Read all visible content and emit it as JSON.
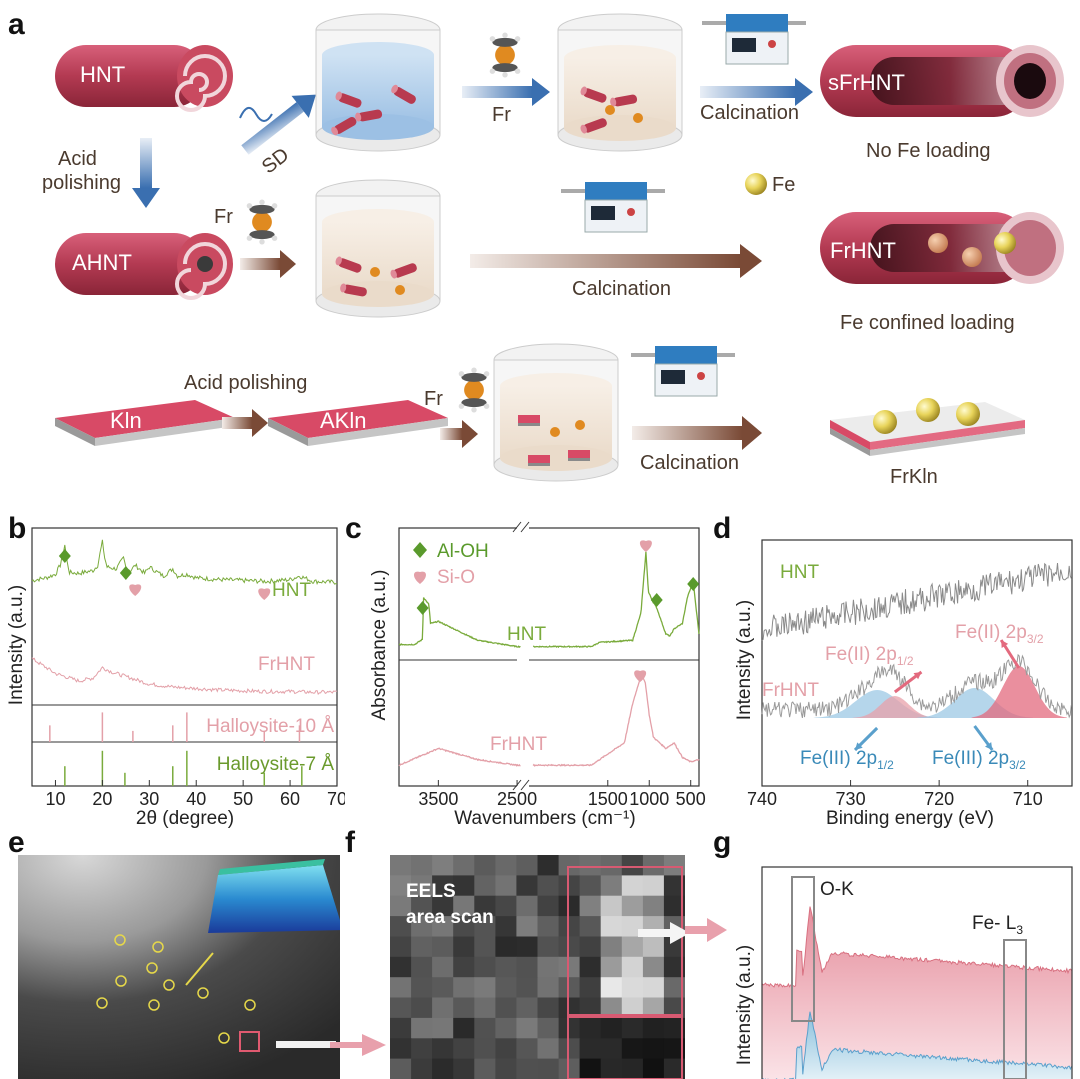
{
  "panel_labels": [
    "a",
    "b",
    "c",
    "d",
    "e",
    "f",
    "g"
  ],
  "panel_a": {
    "hnt": "HNT",
    "ahnt": "AHNT",
    "acid_polishing_1": "Acid",
    "acid_polishing_2": "polishing",
    "sd": "SD",
    "fr_top": "Fr",
    "fr_mid": "Fr",
    "fr_bottom": "Fr",
    "calcination_top": "Calcination",
    "calcination_mid": "Calcination",
    "calcination_bottom": "Calcination",
    "sfrhnt": "sFrHNT",
    "no_fe_loading": "No Fe loading",
    "fe_legend": "Fe",
    "frhnt": "FrHNT",
    "fe_confined_loading": "Fe confined loading",
    "kln": "Kln",
    "akln": "AKln",
    "acid_polishing_row3": "Acid polishing",
    "frkln": "FrKln",
    "colors": {
      "tube": "#b83a4f",
      "pink": "#e04f6c",
      "arrow_blue": "#3a6fb0",
      "arrow_brown": "#7a4a36",
      "fe": "#e8d45a"
    }
  },
  "chart_data": [
    {
      "panel": "b",
      "type": "line",
      "xlabel": "2θ (degree)",
      "ylabel": "Intensity (a.u.)",
      "xlim": [
        5,
        70
      ],
      "xticks": [
        10,
        20,
        30,
        40,
        50,
        60,
        70
      ],
      "series": [
        {
          "name": "HNT",
          "color": "#7aab3c",
          "x": [
            5,
            8,
            10,
            11,
            12,
            12.5,
            13,
            15,
            18,
            19,
            20,
            20.5,
            21,
            23,
            24.5,
            25,
            26,
            27,
            29,
            30,
            33,
            35,
            36,
            38,
            40,
            45,
            50,
            55,
            60,
            62,
            65,
            70
          ],
          "y": [
            0.55,
            0.58,
            0.62,
            0.72,
            0.95,
            0.75,
            0.64,
            0.63,
            0.66,
            0.72,
            0.98,
            0.8,
            0.7,
            0.68,
            0.8,
            0.7,
            0.66,
            0.72,
            0.63,
            0.7,
            0.6,
            0.68,
            0.6,
            0.62,
            0.58,
            0.56,
            0.55,
            0.54,
            0.56,
            0.6,
            0.54,
            0.53
          ]
        },
        {
          "name": "FrHNT",
          "color": "#e3a0a8",
          "x": [
            5,
            8,
            10,
            15,
            18,
            20,
            22,
            25,
            28,
            30,
            35,
            40,
            45,
            50,
            55,
            60,
            65,
            70
          ],
          "y": [
            0.62,
            0.5,
            0.42,
            0.32,
            0.36,
            0.5,
            0.44,
            0.38,
            0.32,
            0.28,
            0.24,
            0.22,
            0.2,
            0.19,
            0.18,
            0.18,
            0.17,
            0.17
          ]
        }
      ],
      "references": [
        {
          "name": "Halloysite-10 Å",
          "color": "#e3a0a8",
          "lines": [
            8.8,
            20,
            26.5,
            35,
            38,
            54.5,
            62
          ]
        },
        {
          "name": "Halloysite-7 Å",
          "color": "#7aab3c",
          "lines": [
            12,
            20,
            24.8,
            35,
            38,
            54.5,
            62.5
          ]
        }
      ],
      "markers": [
        {
          "symbol": "diamond",
          "color": "#5a9a2c",
          "x": 12
        },
        {
          "symbol": "diamond",
          "color": "#5a9a2c",
          "x": 25
        },
        {
          "symbol": "heart",
          "color": "#e3a0a8",
          "x": 27
        },
        {
          "symbol": "heart",
          "color": "#e3a0a8",
          "x": 54.5
        }
      ]
    },
    {
      "panel": "c",
      "type": "line",
      "xlabel": "Wavenumbers (cm⁻¹)",
      "ylabel": "Absorbance (a.u.)",
      "xticks": [
        3500,
        2500,
        1500,
        1000,
        500
      ],
      "legend": [
        {
          "symbol": "diamond",
          "label": "Al-OH",
          "color": "#5a9a2c"
        },
        {
          "symbol": "heart",
          "label": "Si-O",
          "color": "#e3a0a8"
        }
      ],
      "series": [
        {
          "name": "HNT",
          "color": "#7aab3c",
          "x": [
            4000,
            3800,
            3700,
            3690,
            3620,
            3600,
            3500,
            3000,
            2500,
            1700,
            1600,
            1200,
            1100,
            1040,
            1010,
            950,
            910,
            800,
            750,
            700,
            600,
            540,
            470,
            400
          ],
          "y": [
            0.1,
            0.1,
            0.15,
            0.55,
            0.48,
            0.3,
            0.32,
            0.14,
            0.08,
            0.08,
            0.12,
            0.14,
            0.4,
            0.98,
            0.6,
            0.5,
            0.45,
            0.2,
            0.18,
            0.25,
            0.3,
            0.55,
            0.7,
            0.2
          ]
        },
        {
          "name": "FrHNT",
          "color": "#e3a0a8",
          "x": [
            4000,
            3500,
            3000,
            2500,
            1700,
            1600,
            1300,
            1200,
            1100,
            1050,
            1000,
            950,
            800,
            700,
            600,
            500,
            400
          ],
          "y": [
            0.15,
            0.3,
            0.2,
            0.15,
            0.15,
            0.2,
            0.35,
            0.7,
            0.95,
            0.9,
            0.6,
            0.4,
            0.3,
            0.35,
            0.22,
            0.18,
            0.2
          ]
        }
      ]
    },
    {
      "panel": "d",
      "type": "line",
      "xlabel": "Binding energy (eV)",
      "ylabel": "Intensity (a.u.)",
      "xlim": [
        740,
        705
      ],
      "xticks": [
        740,
        730,
        720,
        710
      ],
      "series": [
        {
          "name": "HNT",
          "color": "#7aab3c"
        },
        {
          "name": "FrHNT",
          "color": "#e3a0a8"
        }
      ],
      "peaks": [
        {
          "label": "Fe(II) 2p1/2",
          "center": 725
        },
        {
          "label": "Fe(II) 2p3/2",
          "center": 711
        },
        {
          "label": "Fe(III) 2p1/2",
          "center": 727
        },
        {
          "label": "Fe(III) 2p3/2",
          "center": 716
        }
      ]
    },
    {
      "panel": "g",
      "type": "line",
      "ylabel": "Intensity (a.u.)",
      "series": [
        {
          "name": "pink spectrum",
          "color": "#e08a98"
        },
        {
          "name": "blue spectrum",
          "color": "#6aa8cc"
        }
      ],
      "annotations": [
        "O-K",
        "Fe- L3"
      ]
    }
  ],
  "panel_e": {
    "alt": "TEM image"
  },
  "panel_f": {
    "line1": "EELS",
    "line2": "area scan"
  },
  "panel_b_labels": {
    "hnt": "HNT",
    "frhnt": "FrHNT",
    "ref10": "Halloysite-10 Å",
    "ref7": "Halloysite-7 Å"
  },
  "panel_d_labels": {
    "hnt": "HNT",
    "frhnt": "FrHNT",
    "fe2_12": "Fe(II) 2p",
    "fe2_12_sub": "1/2",
    "fe2_32": "Fe(II) 2p",
    "fe2_32_sub": "3/2",
    "fe3_12": "Fe(III) 2p",
    "fe3_12_sub": "1/2",
    "fe3_32": "Fe(III) 2p",
    "fe3_32_sub": "3/2"
  },
  "panel_g_labels": {
    "ok": "O-K",
    "fel3": "Fe- L",
    "fel3_sub": "3"
  }
}
